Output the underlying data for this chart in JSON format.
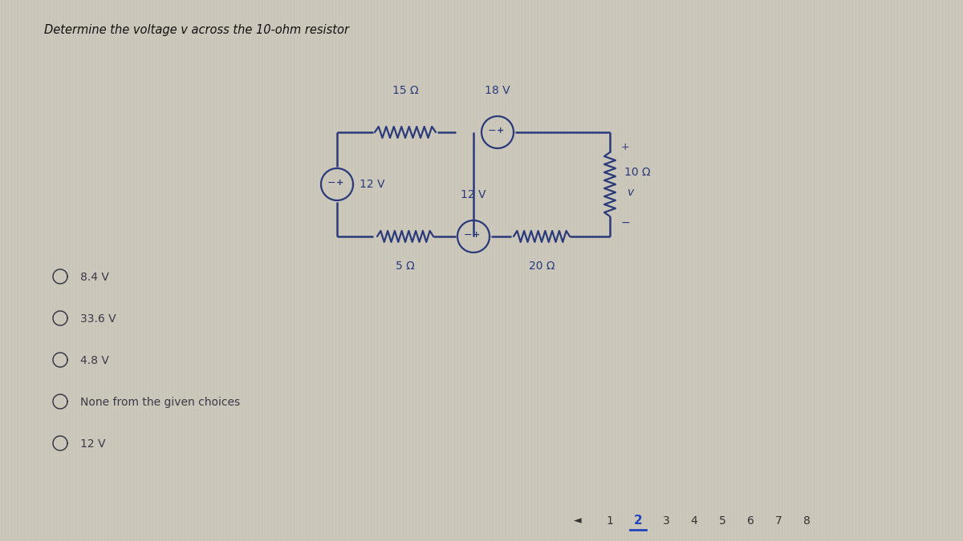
{
  "title": "Determine the voltage v across the 10-ohm resistor",
  "bg_color": "#c9c5b8",
  "stripe_color": "#d4d0c4",
  "circuit_color": "#2a3a7a",
  "text_color": "#2a3a7a",
  "choices": [
    "8.4 V",
    "33.6 V",
    "4.8 V",
    "None from the given choices",
    "12 V"
  ],
  "page_numbers": [
    "1",
    "2",
    "3",
    "4",
    "5",
    "6",
    "7",
    "8"
  ],
  "active_page": "2",
  "labels": {
    "res_top": "15 Ω",
    "src_top": "18 V",
    "src_left": "12 V",
    "src_mid": "12 V",
    "res_right": "10 Ω",
    "res_right_v": "v",
    "res_bot_left": "5 Ω",
    "res_bot_right": "20 Ω"
  }
}
